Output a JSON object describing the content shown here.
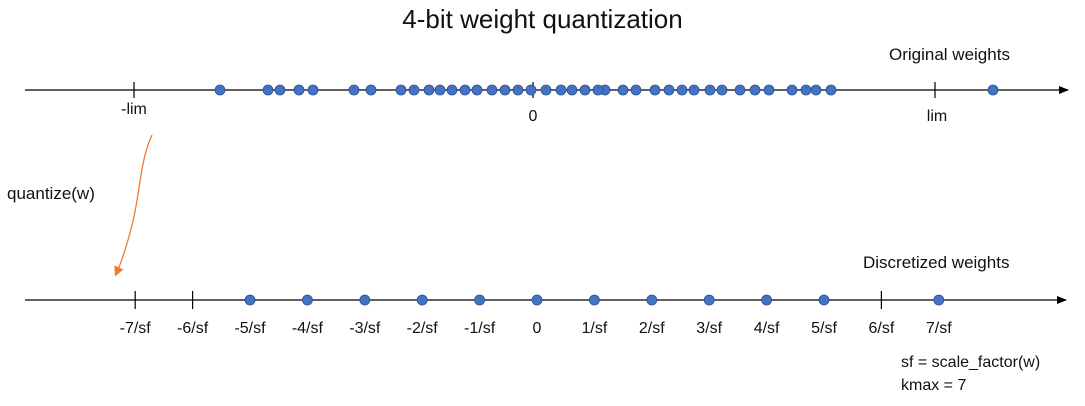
{
  "title": "4-bit weight quantization",
  "original": {
    "label": "Original weights",
    "tick_labels": [
      "-lim",
      "0",
      "lim"
    ],
    "point_count": 40
  },
  "discretized": {
    "label": "Discretized weights",
    "tick_labels": [
      "-7/sf",
      "-6/sf",
      "-5/sf",
      "-4/sf",
      "-3/sf",
      "-2/sf",
      "-1/sf",
      "0",
      "1/sf",
      "2/sf",
      "3/sf",
      "4/sf",
      "5/sf",
      "6/sf",
      "7/sf"
    ],
    "filled_levels": [
      -5,
      -4,
      -3,
      -2,
      -1,
      0,
      1,
      2,
      3,
      4,
      5,
      7
    ]
  },
  "arrow_label": "quantize(w)",
  "notes": {
    "sf": "sf = scale_factor(w)",
    "kmax": "kmax = 7"
  },
  "colors": {
    "point": "#4472C4",
    "point_stroke": "#2F528F",
    "arrow": "#ED7D31",
    "axis": "#000000"
  }
}
